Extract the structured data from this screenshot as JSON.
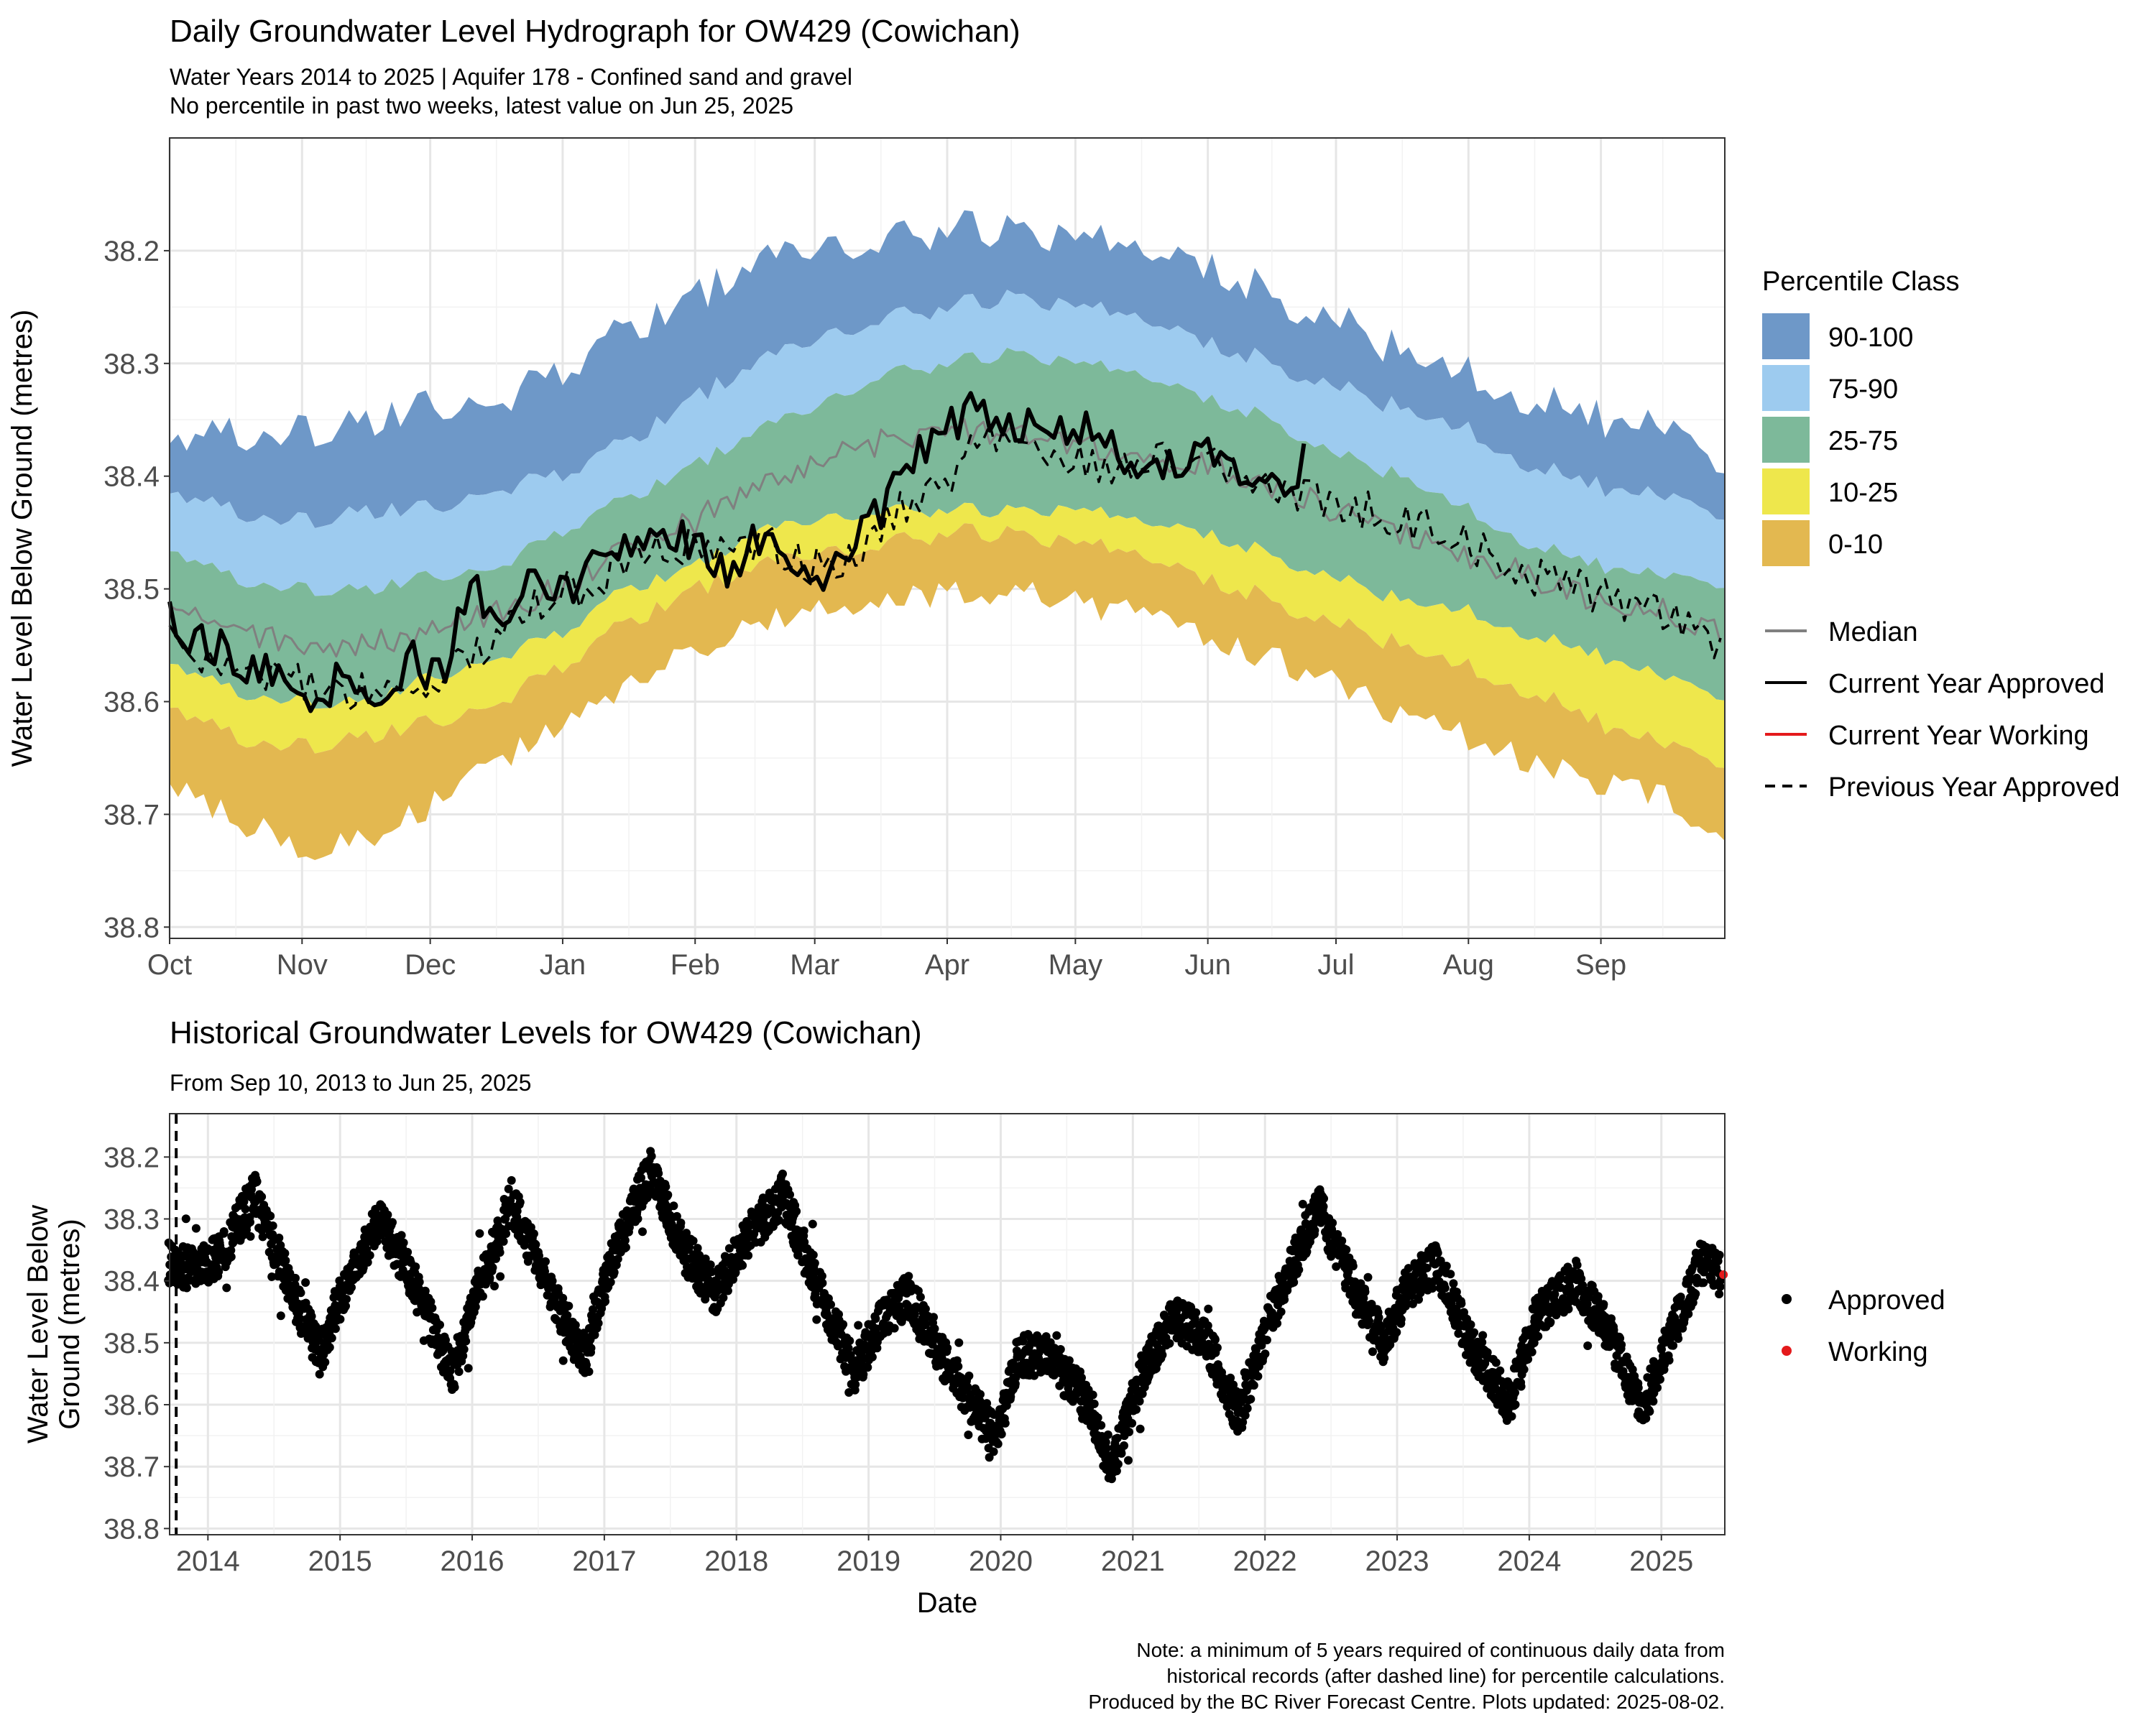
{
  "top": {
    "title": "Daily Groundwater Level Hydrograph for OW429 (Cowichan)",
    "subtitle1": "Water Years 2014 to 2025 | Aquifer 178 - Confined sand and gravel",
    "subtitle2": "No percentile in past two weeks, latest value on Jun 25, 2025",
    "ylabel": "Water Level Below Ground (metres)"
  },
  "bottom": {
    "title": "Historical Groundwater Levels for OW429 (Cowichan)",
    "subtitle": "From Sep 10, 2013 to Jun 25, 2025",
    "ylabel_line1": "Water Level Below",
    "ylabel_line2": "Ground (metres)",
    "xlabel": "Date"
  },
  "legend1": {
    "title": "Percentile Class",
    "items": [
      {
        "label": "90-100",
        "color": "#6E98C8"
      },
      {
        "label": "75-90",
        "color": "#9DCBEF"
      },
      {
        "label": "25-75",
        "color": "#7DB99A"
      },
      {
        "label": "10-25",
        "color": "#EEE74C"
      },
      {
        "label": "0-10",
        "color": "#E3B850"
      }
    ],
    "lines": [
      {
        "label": "Median",
        "color": "#808080",
        "dash": ""
      },
      {
        "label": "Current Year Approved",
        "color": "#000000",
        "dash": ""
      },
      {
        "label": "Current Year Working",
        "color": "#E41A1C",
        "dash": ""
      },
      {
        "label": "Previous Year Approved",
        "color": "#000000",
        "dash": "14,10"
      }
    ]
  },
  "legend2": {
    "items": [
      {
        "label": "Approved",
        "color": "#000000"
      },
      {
        "label": "Working",
        "color": "#E41A1C"
      }
    ]
  },
  "note": {
    "line1": "Note: a minimum of 5 years required of continuous daily data from",
    "line2": "historical records (after dashed line) for percentile calculations.",
    "line3": "Produced by the BC River Forecast Centre. Plots updated: 2025-08-02."
  },
  "chart_data": [
    {
      "type": "area",
      "title": "Daily Groundwater Level Hydrograph for OW429 (Cowichan)",
      "ylabel": "Water Level Below Ground (metres)",
      "y_reversed": true,
      "ylim": [
        38.81,
        38.1
      ],
      "yticks": [
        38.2,
        38.3,
        38.4,
        38.5,
        38.6,
        38.7,
        38.8
      ],
      "x_ticks": [
        "Oct",
        "Nov",
        "Dec",
        "Jan",
        "Feb",
        "Mar",
        "Apr",
        "May",
        "Jun",
        "Jul",
        "Aug",
        "Sep"
      ],
      "x_tick_day": [
        0,
        31,
        61,
        92,
        123,
        151,
        182,
        212,
        243,
        273,
        304,
        335
      ],
      "x_range_days": [
        0,
        364
      ],
      "anchor_days": [
        0,
        15,
        31,
        46,
        61,
        76,
        92,
        107,
        123,
        137,
        151,
        166,
        182,
        197,
        212,
        227,
        243,
        258,
        273,
        288,
        304,
        319,
        335,
        350,
        364
      ],
      "bands": [
        {
          "name": "90-100",
          "color": "#6E98C8",
          "top": [
            38.38,
            38.36,
            38.36,
            38.35,
            38.34,
            38.33,
            38.31,
            38.27,
            38.24,
            38.21,
            38.2,
            38.19,
            38.18,
            38.18,
            38.19,
            38.2,
            38.21,
            38.24,
            38.26,
            38.29,
            38.31,
            38.33,
            38.35,
            38.36,
            38.4
          ]
        },
        {
          "name": "75-90",
          "color": "#9DCBEF",
          "top": [
            38.42,
            38.43,
            38.44,
            38.43,
            38.43,
            38.41,
            38.4,
            38.37,
            38.33,
            38.3,
            38.28,
            38.26,
            38.25,
            38.24,
            38.25,
            38.26,
            38.28,
            38.3,
            38.32,
            38.34,
            38.36,
            38.39,
            38.41,
            38.42,
            38.44
          ]
        },
        {
          "name": "25-75",
          "color": "#7DB99A",
          "top": [
            38.47,
            38.49,
            38.5,
            38.5,
            38.49,
            38.48,
            38.45,
            38.42,
            38.39,
            38.36,
            38.34,
            38.31,
            38.3,
            38.29,
            38.3,
            38.31,
            38.33,
            38.35,
            38.38,
            38.4,
            38.43,
            38.46,
            38.48,
            38.49,
            38.5
          ]
        },
        {
          "name": "10-25",
          "color": "#EEE74C",
          "top": [
            38.57,
            38.59,
            38.6,
            38.6,
            38.58,
            38.56,
            38.54,
            38.5,
            38.48,
            38.45,
            38.44,
            38.43,
            38.43,
            38.43,
            38.43,
            38.44,
            38.45,
            38.47,
            38.49,
            38.51,
            38.52,
            38.54,
            38.56,
            38.58,
            38.6
          ]
        },
        {
          "name": "0-10",
          "color": "#E3B850",
          "top": [
            38.61,
            38.63,
            38.64,
            38.63,
            38.62,
            38.6,
            38.57,
            38.53,
            38.5,
            38.48,
            38.47,
            38.46,
            38.45,
            38.45,
            38.46,
            38.47,
            38.49,
            38.51,
            38.53,
            38.55,
            38.57,
            38.59,
            38.62,
            38.64,
            38.66
          ]
        }
      ],
      "min_line": [
        38.66,
        38.69,
        38.72,
        38.71,
        38.68,
        38.64,
        38.61,
        38.57,
        38.54,
        38.52,
        38.51,
        38.5,
        38.49,
        38.49,
        38.5,
        38.51,
        38.53,
        38.55,
        38.57,
        38.6,
        38.62,
        38.64,
        38.66,
        38.67,
        38.72
      ],
      "series": [
        {
          "name": "Median",
          "color": "#808080",
          "days": [
            0,
            15,
            31,
            46,
            61,
            76,
            92,
            107,
            123,
            137,
            151,
            166,
            182,
            197,
            212,
            227,
            243,
            258,
            273,
            288,
            304,
            319,
            335,
            350,
            364
          ],
          "values": [
            38.52,
            38.54,
            38.55,
            38.55,
            38.54,
            38.52,
            38.5,
            38.46,
            38.44,
            38.41,
            38.39,
            38.37,
            38.36,
            38.36,
            38.37,
            38.38,
            38.39,
            38.41,
            38.43,
            38.45,
            38.47,
            38.49,
            38.51,
            38.52,
            38.54
          ]
        },
        {
          "name": "Current Year Approved",
          "color": "#000000",
          "days": [
            0,
            8,
            15,
            24,
            31,
            40,
            48,
            56,
            63,
            71,
            78,
            86,
            94,
            101,
            109,
            117,
            124,
            132,
            140,
            147,
            152,
            160,
            168,
            176,
            184,
            192,
            200,
            208,
            216,
            224,
            232,
            240,
            248,
            256,
            266
          ],
          "values": [
            38.52,
            38.55,
            38.56,
            38.58,
            38.6,
            38.58,
            38.62,
            38.56,
            38.58,
            38.5,
            38.52,
            38.48,
            38.51,
            38.46,
            38.47,
            38.45,
            38.47,
            38.49,
            38.44,
            38.48,
            38.5,
            38.46,
            38.42,
            38.38,
            38.35,
            38.34,
            38.36,
            38.35,
            38.36,
            38.38,
            38.39,
            38.38,
            38.39,
            38.41,
            38.39
          ]
        },
        {
          "name": "Previous Year Approved",
          "color": "#000000",
          "dash": "14,10",
          "days": [
            0,
            10,
            20,
            30,
            40,
            50,
            60,
            70,
            80,
            90,
            100,
            110,
            120,
            130,
            140,
            150,
            160,
            170,
            180,
            190,
            200,
            210,
            220,
            230,
            240,
            250,
            260,
            270,
            280,
            290,
            300,
            310,
            320,
            330,
            340,
            350,
            364
          ],
          "values": [
            38.54,
            38.57,
            38.57,
            38.58,
            38.59,
            38.59,
            38.6,
            38.56,
            38.53,
            38.5,
            38.5,
            38.46,
            38.46,
            38.47,
            38.46,
            38.48,
            38.47,
            38.43,
            38.41,
            38.37,
            38.38,
            38.38,
            38.39,
            38.39,
            38.38,
            38.4,
            38.41,
            38.42,
            38.43,
            38.44,
            38.45,
            38.47,
            38.49,
            38.5,
            38.51,
            38.52,
            38.55
          ]
        }
      ]
    },
    {
      "type": "scatter",
      "title": "Historical Groundwater Levels for OW429 (Cowichan)",
      "xlabel": "Date",
      "ylabel": "Water Level Below Ground (metres)",
      "y_reversed": true,
      "ylim": [
        38.81,
        38.13
      ],
      "yticks": [
        38.2,
        38.3,
        38.4,
        38.5,
        38.6,
        38.7,
        38.8
      ],
      "xlim": [
        2013.71,
        2025.48
      ],
      "xticks": [
        2014,
        2015,
        2016,
        2017,
        2018,
        2019,
        2020,
        2021,
        2022,
        2023,
        2024,
        2025
      ],
      "dashed_line_year": 2013.76,
      "series": [
        {
          "name": "Approved",
          "color": "#000000",
          "x": [
            2013.7,
            2013.9,
            2014.1,
            2014.35,
            2014.6,
            2014.85,
            2015.0,
            2015.3,
            2015.55,
            2015.85,
            2016.05,
            2016.3,
            2016.55,
            2016.85,
            2017.05,
            2017.35,
            2017.6,
            2017.85,
            2018.05,
            2018.35,
            2018.6,
            2018.9,
            2019.05,
            2019.3,
            2019.55,
            2019.95,
            2020.15,
            2020.35,
            2020.6,
            2020.85,
            2021.05,
            2021.3,
            2021.55,
            2021.8,
            2022.05,
            2022.4,
            2022.65,
            2022.9,
            2023.05,
            2023.3,
            2023.55,
            2023.85,
            2024.05,
            2024.35,
            2024.6,
            2024.85,
            2025.05,
            2025.3,
            2025.45
          ],
          "y": [
            38.37,
            38.38,
            38.36,
            38.26,
            38.4,
            38.52,
            38.43,
            38.3,
            38.4,
            38.55,
            38.41,
            38.27,
            38.4,
            38.52,
            38.37,
            38.22,
            38.35,
            38.42,
            38.34,
            38.26,
            38.4,
            38.55,
            38.48,
            38.42,
            38.52,
            38.65,
            38.52,
            38.52,
            38.58,
            38.7,
            38.56,
            38.46,
            38.49,
            38.62,
            38.45,
            38.28,
            38.4,
            38.5,
            38.42,
            38.37,
            38.5,
            38.6,
            38.46,
            38.4,
            38.48,
            38.61,
            38.5,
            38.37,
            38.39
          ]
        },
        {
          "name": "Working",
          "color": "#E41A1C",
          "x": [
            2025.47
          ],
          "y": [
            38.39
          ]
        }
      ]
    }
  ]
}
